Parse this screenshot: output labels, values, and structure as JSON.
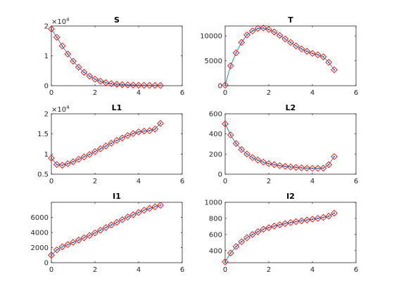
{
  "colors": {
    "line": "#0072bd",
    "marker": "#ff0000",
    "axes": "#262626",
    "background": "#ffffff"
  },
  "chart_data": [
    {
      "type": "line",
      "title": "S",
      "xlim": [
        0,
        6
      ],
      "ylim": [
        0,
        2
      ],
      "xticks": [
        0,
        2,
        4,
        6
      ],
      "yticks": [
        0,
        1,
        2
      ],
      "exponent": "4",
      "x": [
        0,
        0.25,
        0.5,
        0.75,
        1,
        1.25,
        1.5,
        1.75,
        2,
        2.25,
        2.5,
        2.75,
        3,
        3.25,
        3.5,
        3.75,
        4,
        4.25,
        4.5,
        4.75,
        5
      ],
      "series": [
        {
          "values": [
            1.9,
            1.62,
            1.33,
            1.06,
            0.82,
            0.62,
            0.45,
            0.32,
            0.22,
            0.15,
            0.1,
            0.07,
            0.05,
            0.035,
            0.025,
            0.02,
            0.015,
            0.012,
            0.01,
            0.01,
            0.01
          ]
        },
        {
          "values": [
            1.9,
            1.62,
            1.33,
            1.06,
            0.82,
            0.62,
            0.45,
            0.32,
            0.22,
            0.15,
            0.1,
            0.07,
            0.05,
            0.035,
            0.025,
            0.02,
            0.015,
            0.012,
            0.01,
            0.01,
            0.01
          ]
        }
      ]
    },
    {
      "type": "line",
      "title": "T",
      "xlim": [
        0,
        6
      ],
      "ylim": [
        0,
        12000
      ],
      "xticks": [
        0,
        2,
        4,
        6
      ],
      "yticks": [
        0,
        5000,
        10000
      ],
      "exponent": "",
      "x": [
        0,
        0.25,
        0.5,
        0.75,
        1,
        1.25,
        1.5,
        1.75,
        2,
        2.25,
        2.5,
        2.75,
        3,
        3.25,
        3.5,
        3.75,
        4,
        4.25,
        4.5,
        4.75,
        5
      ],
      "series": [
        {
          "values": [
            100,
            4000,
            6600,
            8700,
            10200,
            11000,
            11500,
            11600,
            11300,
            10800,
            10100,
            9400,
            8700,
            8000,
            7400,
            6900,
            6500,
            6200,
            5800,
            4700,
            3200
          ]
        },
        {
          "values": [
            100,
            4000,
            6600,
            8700,
            10200,
            11000,
            11500,
            11600,
            11300,
            10800,
            10100,
            9400,
            8700,
            8000,
            7400,
            6900,
            6500,
            6200,
            5800,
            4700,
            3200
          ]
        }
      ]
    },
    {
      "type": "line",
      "title": "L1",
      "xlim": [
        0,
        6
      ],
      "ylim": [
        0.5,
        2
      ],
      "xticks": [
        0,
        2,
        4,
        6
      ],
      "yticks": [
        0.5,
        1,
        1.5,
        2
      ],
      "exponent": "4",
      "x": [
        0,
        0.25,
        0.5,
        0.75,
        1,
        1.25,
        1.5,
        1.75,
        2,
        2.25,
        2.5,
        2.75,
        3,
        3.25,
        3.5,
        3.75,
        4,
        4.25,
        4.5,
        4.75,
        5
      ],
      "series": [
        {
          "values": [
            0.9,
            0.74,
            0.72,
            0.76,
            0.81,
            0.87,
            0.93,
            0.99,
            1.06,
            1.13,
            1.2,
            1.27,
            1.34,
            1.4,
            1.46,
            1.51,
            1.55,
            1.57,
            1.58,
            1.62,
            1.76
          ]
        },
        {
          "values": [
            0.9,
            0.74,
            0.72,
            0.76,
            0.81,
            0.87,
            0.93,
            0.99,
            1.06,
            1.13,
            1.2,
            1.27,
            1.34,
            1.4,
            1.46,
            1.51,
            1.55,
            1.57,
            1.58,
            1.62,
            1.76
          ]
        }
      ]
    },
    {
      "type": "line",
      "title": "L2",
      "xlim": [
        0,
        6
      ],
      "ylim": [
        0,
        600
      ],
      "xticks": [
        0,
        2,
        4,
        6
      ],
      "yticks": [
        0,
        200,
        400,
        600
      ],
      "exponent": "",
      "x": [
        0,
        0.25,
        0.5,
        0.75,
        1,
        1.25,
        1.5,
        1.75,
        2,
        2.25,
        2.5,
        2.75,
        3,
        3.25,
        3.5,
        3.75,
        4,
        4.25,
        4.5,
        4.75,
        5
      ],
      "series": [
        {
          "values": [
            500,
            390,
            305,
            245,
            200,
            165,
            140,
            120,
            105,
            95,
            85,
            78,
            72,
            67,
            63,
            60,
            58,
            58,
            60,
            95,
            175
          ]
        },
        {
          "values": [
            500,
            390,
            305,
            245,
            200,
            165,
            140,
            120,
            105,
            95,
            85,
            78,
            72,
            67,
            63,
            60,
            58,
            58,
            60,
            95,
            175
          ]
        }
      ]
    },
    {
      "type": "line",
      "title": "I1",
      "xlim": [
        0,
        6
      ],
      "ylim": [
        0,
        8000
      ],
      "xticks": [
        0,
        2,
        4,
        6
      ],
      "yticks": [
        0,
        2000,
        4000,
        6000
      ],
      "exponent": "",
      "x": [
        0,
        0.25,
        0.5,
        0.75,
        1,
        1.25,
        1.5,
        1.75,
        2,
        2.25,
        2.5,
        2.75,
        3,
        3.25,
        3.5,
        3.75,
        4,
        4.25,
        4.5,
        4.75,
        5
      ],
      "series": [
        {
          "values": [
            1000,
            1700,
            2100,
            2400,
            2700,
            3000,
            3300,
            3600,
            3950,
            4300,
            4650,
            5000,
            5350,
            5700,
            6050,
            6350,
            6650,
            6950,
            7200,
            7400,
            7600
          ]
        },
        {
          "values": [
            1000,
            1700,
            2100,
            2400,
            2700,
            3000,
            3300,
            3600,
            3950,
            4300,
            4650,
            5000,
            5350,
            5700,
            6050,
            6350,
            6650,
            6950,
            7200,
            7400,
            7600
          ]
        }
      ]
    },
    {
      "type": "line",
      "title": "I2",
      "xlim": [
        0,
        6
      ],
      "ylim": [
        250,
        1000
      ],
      "xticks": [
        0,
        2,
        4,
        6
      ],
      "yticks": [
        400,
        600,
        800,
        1000
      ],
      "exponent": "",
      "x": [
        0,
        0.25,
        0.5,
        0.75,
        1,
        1.25,
        1.5,
        1.75,
        2,
        2.25,
        2.5,
        2.75,
        3,
        3.25,
        3.5,
        3.75,
        4,
        4.25,
        4.5,
        4.75,
        5
      ],
      "series": [
        {
          "values": [
            260,
            370,
            450,
            510,
            560,
            600,
            635,
            665,
            685,
            705,
            720,
            735,
            748,
            760,
            770,
            780,
            790,
            800,
            812,
            828,
            865
          ]
        },
        {
          "values": [
            260,
            370,
            450,
            510,
            560,
            600,
            635,
            665,
            685,
            705,
            720,
            735,
            748,
            760,
            770,
            780,
            790,
            800,
            812,
            828,
            865
          ]
        }
      ]
    }
  ]
}
